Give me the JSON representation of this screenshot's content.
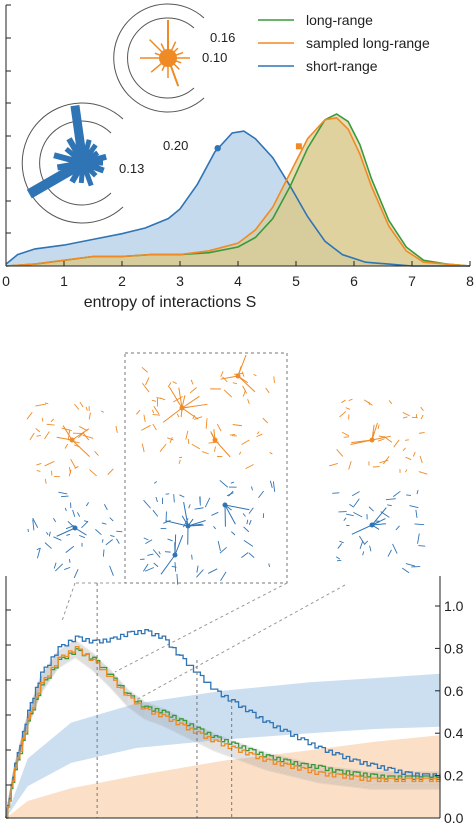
{
  "colors": {
    "long": "#3a9a3a",
    "sampled": "#f08a24",
    "short": "#2f74b5",
    "long_fill": "#d9c98c",
    "short_fill": "#bcd4ea",
    "band_blue": "#c7dbef",
    "band_orange": "#fbdcc0",
    "axis": "#222222",
    "dash": "#777777"
  },
  "chart_data": [
    {
      "type": "area",
      "xlabel": "entropy of interactions S",
      "xlim": [
        0,
        8
      ],
      "x_ticks": [
        "0",
        "1",
        "2",
        "3",
        "4",
        "5",
        "6",
        "7",
        "8"
      ],
      "legend": {
        "placement": "top-right",
        "entries": [
          {
            "name": "long-range",
            "color": "#3a9a3a"
          },
          {
            "name": "sampled long-range",
            "color": "#f08a24"
          },
          {
            "name": "short-range",
            "color": "#2f74b5"
          }
        ]
      },
      "series": [
        {
          "name": "short-range",
          "x": [
            0.0,
            0.2,
            0.5,
            1.0,
            1.5,
            2.0,
            2.4,
            2.8,
            3.0,
            3.3,
            3.6,
            3.9,
            4.1,
            4.3,
            4.6,
            4.9,
            5.2,
            5.5,
            5.8,
            6.2,
            6.6,
            7.0,
            7.5,
            8.0
          ],
          "y": [
            0.01,
            0.06,
            0.09,
            0.11,
            0.14,
            0.17,
            0.2,
            0.25,
            0.3,
            0.43,
            0.6,
            0.7,
            0.71,
            0.67,
            0.57,
            0.42,
            0.26,
            0.13,
            0.06,
            0.02,
            0.01,
            0.0,
            0.0,
            0.0
          ],
          "marker": {
            "x": 3.65,
            "y": 0.62
          }
        },
        {
          "name": "long-range",
          "x": [
            0.0,
            0.5,
            1.0,
            1.5,
            2.0,
            2.5,
            3.0,
            3.5,
            4.0,
            4.3,
            4.6,
            4.9,
            5.2,
            5.5,
            5.7,
            5.9,
            6.1,
            6.3,
            6.6,
            6.9,
            7.2,
            7.6,
            8.0
          ],
          "y": [
            0.0,
            0.01,
            0.03,
            0.05,
            0.05,
            0.06,
            0.06,
            0.07,
            0.1,
            0.15,
            0.25,
            0.42,
            0.62,
            0.77,
            0.8,
            0.76,
            0.64,
            0.46,
            0.24,
            0.1,
            0.03,
            0.01,
            0.0
          ]
        },
        {
          "name": "sampled long-range",
          "x": [
            0.0,
            0.5,
            1.0,
            1.5,
            2.0,
            2.5,
            3.0,
            3.5,
            4.0,
            4.3,
            4.6,
            4.9,
            5.2,
            5.5,
            5.7,
            5.9,
            6.1,
            6.3,
            6.6,
            6.9,
            7.2,
            7.6,
            8.0
          ],
          "y": [
            0.0,
            0.01,
            0.03,
            0.05,
            0.05,
            0.06,
            0.06,
            0.08,
            0.12,
            0.19,
            0.31,
            0.49,
            0.67,
            0.77,
            0.78,
            0.72,
            0.59,
            0.42,
            0.21,
            0.08,
            0.02,
            0.01,
            0.0
          ],
          "marker": {
            "x": 5.05,
            "y": 0.63
          }
        }
      ],
      "polar_insets": [
        {
          "name": "sampled long-range polar",
          "color": "#f08a24",
          "ring_labels": [
            "0.16",
            "0.10"
          ]
        },
        {
          "name": "short-range polar",
          "color": "#2f74b5",
          "ring_labels": [
            "0.20",
            "0.13"
          ]
        }
      ]
    },
    {
      "type": "line",
      "ylim": [
        0.0,
        1.0
      ],
      "y_ticks_right": [
        "1.0",
        "0.8",
        "0.6",
        "0.4",
        "0.2",
        "0.0"
      ],
      "series": [
        {
          "name": "short-range",
          "x": [
            0,
            0.02,
            0.05,
            0.08,
            0.12,
            0.16,
            0.2,
            0.24,
            0.28,
            0.32,
            0.36,
            0.4,
            0.44,
            0.48,
            0.52,
            0.56,
            0.6,
            0.64,
            0.68,
            0.72,
            0.76,
            0.8,
            0.84,
            0.88,
            0.92,
            0.96,
            1.0
          ],
          "y": [
            0.0,
            0.25,
            0.5,
            0.68,
            0.8,
            0.85,
            0.83,
            0.84,
            0.87,
            0.88,
            0.85,
            0.76,
            0.68,
            0.6,
            0.55,
            0.5,
            0.45,
            0.41,
            0.37,
            0.33,
            0.3,
            0.27,
            0.25,
            0.23,
            0.21,
            0.2,
            0.2
          ]
        },
        {
          "name": "long-range",
          "x": [
            0,
            0.02,
            0.05,
            0.08,
            0.12,
            0.16,
            0.2,
            0.24,
            0.28,
            0.32,
            0.36,
            0.4,
            0.44,
            0.48,
            0.52,
            0.56,
            0.6,
            0.64,
            0.68,
            0.72,
            0.76,
            0.8,
            0.84,
            0.88,
            0.92,
            0.96,
            1.0
          ],
          "y": [
            0.0,
            0.22,
            0.45,
            0.62,
            0.74,
            0.79,
            0.75,
            0.67,
            0.58,
            0.52,
            0.5,
            0.46,
            0.42,
            0.38,
            0.35,
            0.32,
            0.29,
            0.27,
            0.25,
            0.24,
            0.22,
            0.21,
            0.2,
            0.19,
            0.19,
            0.19,
            0.19
          ]
        },
        {
          "name": "sampled long-range",
          "x": [
            0,
            0.02,
            0.05,
            0.08,
            0.12,
            0.16,
            0.2,
            0.24,
            0.28,
            0.32,
            0.36,
            0.4,
            0.44,
            0.48,
            0.52,
            0.56,
            0.6,
            0.64,
            0.68,
            0.72,
            0.76,
            0.8,
            0.84,
            0.88,
            0.92,
            0.96,
            1.0
          ],
          "y": [
            0.0,
            0.23,
            0.46,
            0.63,
            0.75,
            0.8,
            0.74,
            0.66,
            0.57,
            0.51,
            0.48,
            0.44,
            0.4,
            0.36,
            0.33,
            0.3,
            0.27,
            0.25,
            0.23,
            0.21,
            0.2,
            0.19,
            0.18,
            0.18,
            0.18,
            0.18,
            0.18
          ]
        }
      ],
      "bands": [
        {
          "name": "short-range band",
          "color": "#c7dbef",
          "x": [
            0,
            0.05,
            0.15,
            0.3,
            0.5,
            0.7,
            0.85,
            1.0
          ],
          "lower": [
            0.0,
            0.15,
            0.26,
            0.33,
            0.37,
            0.4,
            0.42,
            0.43
          ],
          "upper": [
            0.0,
            0.28,
            0.45,
            0.54,
            0.6,
            0.64,
            0.66,
            0.68
          ]
        },
        {
          "name": "long-range band",
          "color": "#fbdcc0",
          "x": [
            0,
            0.05,
            0.15,
            0.3,
            0.5,
            0.7,
            0.85,
            1.0
          ],
          "lower": [
            0.0,
            0.0,
            0.0,
            0.0,
            0.0,
            0.0,
            0.0,
            0.0
          ],
          "upper": [
            0.0,
            0.08,
            0.14,
            0.2,
            0.27,
            0.32,
            0.36,
            0.39
          ]
        }
      ],
      "markers_x": [
        0.21,
        0.44,
        0.52
      ]
    }
  ]
}
